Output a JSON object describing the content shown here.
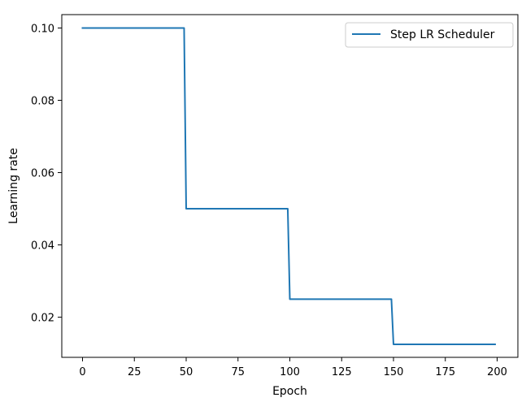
{
  "chart_data": {
    "type": "line",
    "title": "",
    "xlabel": "Epoch",
    "ylabel": "Learning rate",
    "xlim": [
      -10,
      210
    ],
    "ylim": [
      0.0089,
      0.1037
    ],
    "x_ticks": [
      0,
      25,
      50,
      75,
      100,
      125,
      150,
      175,
      200
    ],
    "y_ticks": [
      0.02,
      0.04,
      0.06,
      0.08,
      0.1
    ],
    "y_tick_labels": [
      "0.02",
      "0.04",
      "0.06",
      "0.08",
      "0.10"
    ],
    "grid": false,
    "legend_position": "top-right",
    "series": [
      {
        "name": "Step LR Scheduler",
        "color": "#1f77b4",
        "x": [
          0,
          49,
          50,
          99,
          100,
          149,
          150,
          199
        ],
        "y": [
          0.1,
          0.1,
          0.05,
          0.05,
          0.025,
          0.025,
          0.0125,
          0.0125
        ]
      }
    ]
  }
}
